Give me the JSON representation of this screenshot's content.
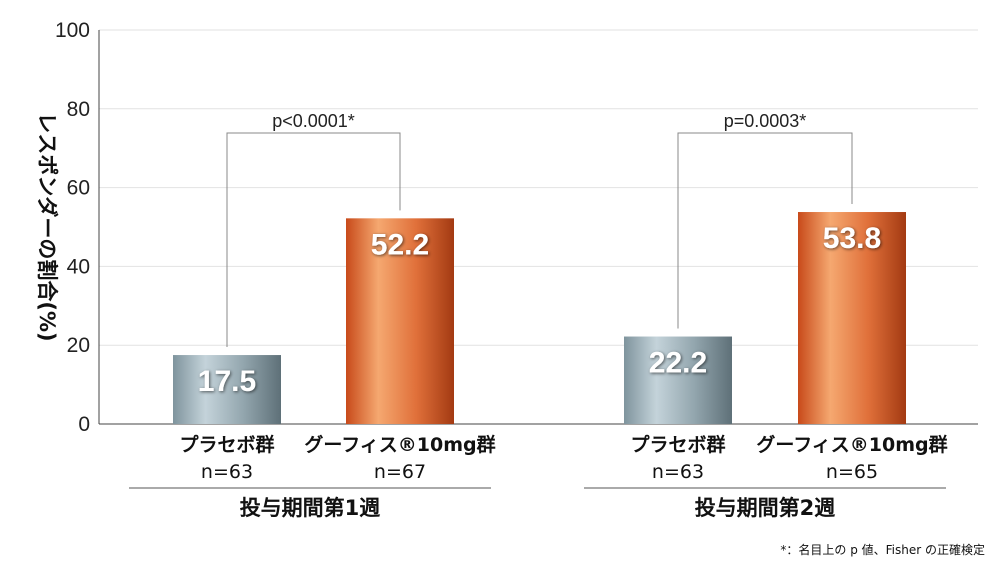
{
  "chart_data": {
    "type": "bar",
    "ylabel": "レスポンダーの割合(%)",
    "ylim": [
      0,
      100
    ],
    "yticks": [
      "0",
      "20",
      "40",
      "60",
      "80",
      "100"
    ],
    "grid": true,
    "groups": [
      {
        "label": "投与期間第1週",
        "p_value": "p<0.0001*",
        "bars": [
          {
            "category": "プラセボ群",
            "n": "n=63",
            "value": 17.5,
            "value_label": "17.5",
            "kind": "placebo"
          },
          {
            "category": "グーフィス®10mg群",
            "n": "n=67",
            "value": 52.2,
            "value_label": "52.2",
            "kind": "drug"
          }
        ]
      },
      {
        "label": "投与期間第2週",
        "p_value": "p=0.0003*",
        "bars": [
          {
            "category": "プラセボ群",
            "n": "n=63",
            "value": 22.2,
            "value_label": "22.2",
            "kind": "placebo"
          },
          {
            "category": "グーフィス®10mg群",
            "n": "n=65",
            "value": 53.8,
            "value_label": "53.8",
            "kind": "drug"
          }
        ]
      }
    ],
    "footnote": "*：名目上の p 値、Fisher の正確検定",
    "colors": {
      "placebo": "#8ea2ab",
      "drug": "#d9622a"
    }
  }
}
